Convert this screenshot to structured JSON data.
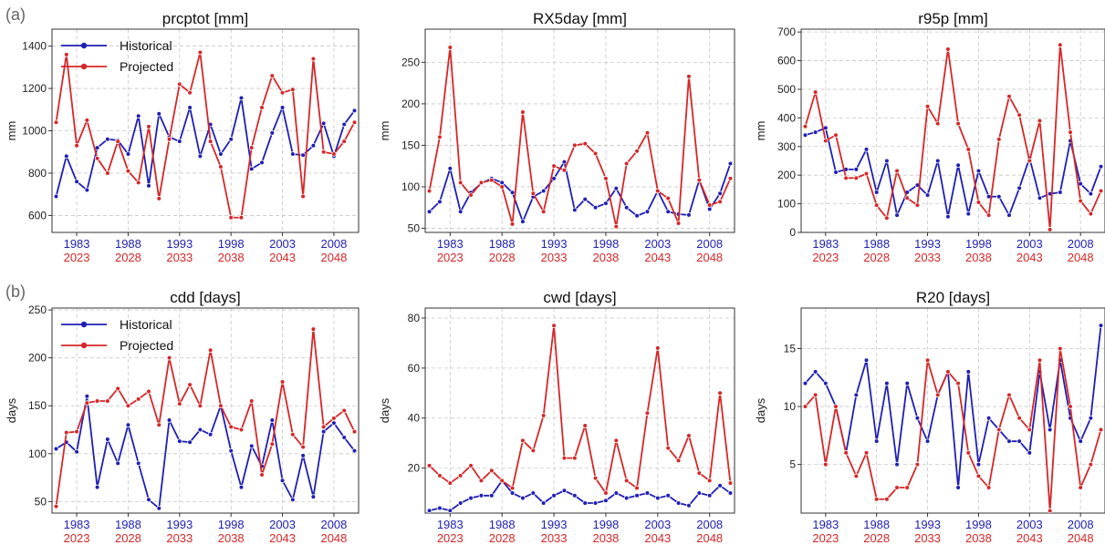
{
  "figure": {
    "panel_labels": [
      "(a)",
      "(b)"
    ],
    "x_ticks_hist": [
      "1983",
      "1988",
      "1993",
      "1998",
      "2003",
      "2008"
    ],
    "x_ticks_proj": [
      "2023",
      "2028",
      "2033",
      "2038",
      "2043",
      "2048"
    ],
    "colors": {
      "historical": "#1f1fb4",
      "projected": "#d62728",
      "grid": "#c8c8c8"
    }
  },
  "chart_data": [
    {
      "type": "line",
      "title": "prcptot [mm]",
      "ylabel": "mm",
      "ylim": [
        520,
        1480
      ],
      "yticks": [
        600,
        800,
        1000,
        1200,
        1400
      ],
      "x": [
        1981,
        1982,
        1983,
        1984,
        1985,
        1986,
        1987,
        1988,
        1989,
        1990,
        1991,
        1992,
        1993,
        1994,
        1995,
        1996,
        1997,
        1998,
        1999,
        2000,
        2001,
        2002,
        2003,
        2004,
        2005,
        2006,
        2007,
        2008,
        2009,
        2010
      ],
      "legend": {
        "show": true,
        "placement": "top-left"
      },
      "series": [
        {
          "name": "Historical",
          "values": [
            690,
            880,
            760,
            720,
            920,
            960,
            955,
            890,
            1070,
            740,
            1080,
            970,
            950,
            1110,
            880,
            1030,
            890,
            960,
            1155,
            820,
            850,
            990,
            1110,
            890,
            885,
            930,
            1035,
            880,
            1030,
            1095
          ]
        },
        {
          "name": "Projected",
          "values": [
            1040,
            1360,
            930,
            1050,
            870,
            800,
            950,
            810,
            755,
            1020,
            680,
            960,
            1220,
            1180,
            1370,
            950,
            830,
            590,
            590,
            920,
            1110,
            1260,
            1180,
            1195,
            690,
            1340,
            900,
            890,
            950,
            1040
          ]
        }
      ]
    },
    {
      "type": "line",
      "title": "RX5day [mm]",
      "ylabel": "mm",
      "ylim": [
        45,
        290
      ],
      "yticks": [
        50,
        100,
        150,
        200,
        250
      ],
      "x": [
        1981,
        1982,
        1983,
        1984,
        1985,
        1986,
        1987,
        1988,
        1989,
        1990,
        1991,
        1992,
        1993,
        1994,
        1995,
        1996,
        1997,
        1998,
        1999,
        2000,
        2001,
        2002,
        2003,
        2004,
        2005,
        2006,
        2007,
        2008,
        2009,
        2010
      ],
      "legend": {
        "show": false
      },
      "series": [
        {
          "name": "Historical",
          "values": [
            70,
            82,
            122,
            70,
            93,
            104,
            110,
            105,
            93,
            58,
            88,
            95,
            110,
            130,
            72,
            85,
            75,
            80,
            98,
            75,
            65,
            70,
            95,
            70,
            67,
            66,
            108,
            73,
            92,
            128
          ]
        },
        {
          "name": "Projected",
          "values": [
            95,
            160,
            268,
            105,
            90,
            105,
            108,
            100,
            55,
            190,
            92,
            70,
            125,
            120,
            150,
            152,
            140,
            110,
            52,
            128,
            143,
            165,
            95,
            86,
            56,
            233,
            108,
            78,
            82,
            110
          ]
        }
      ]
    },
    {
      "type": "line",
      "title": "r95p [mm]",
      "ylabel": "mm",
      "ylim": [
        0,
        710
      ],
      "yticks": [
        0,
        100,
        200,
        300,
        400,
        500,
        600,
        700
      ],
      "x": [
        1981,
        1982,
        1983,
        1984,
        1985,
        1986,
        1987,
        1988,
        1989,
        1990,
        1991,
        1992,
        1993,
        1994,
        1995,
        1996,
        1997,
        1998,
        1999,
        2000,
        2001,
        2002,
        2003,
        2004,
        2005,
        2006,
        2007,
        2008,
        2009,
        2010
      ],
      "legend": {
        "show": false
      },
      "series": [
        {
          "name": "Historical",
          "values": [
            340,
            350,
            365,
            210,
            220,
            220,
            290,
            140,
            250,
            60,
            140,
            165,
            130,
            250,
            55,
            235,
            65,
            215,
            125,
            125,
            60,
            155,
            260,
            120,
            135,
            140,
            320,
            170,
            135,
            230
          ]
        },
        {
          "name": "Projected",
          "values": [
            370,
            490,
            320,
            340,
            190,
            190,
            205,
            95,
            50,
            215,
            120,
            95,
            440,
            380,
            640,
            380,
            290,
            105,
            60,
            325,
            475,
            410,
            250,
            390,
            10,
            655,
            350,
            110,
            65,
            145
          ]
        }
      ]
    },
    {
      "type": "line",
      "title": "cdd [days]",
      "ylabel": "days",
      "ylim": [
        38,
        252
      ],
      "yticks": [
        50,
        100,
        150,
        200,
        250
      ],
      "x": [
        1981,
        1982,
        1983,
        1984,
        1985,
        1986,
        1987,
        1988,
        1989,
        1990,
        1991,
        1992,
        1993,
        1994,
        1995,
        1996,
        1997,
        1998,
        1999,
        2000,
        2001,
        2002,
        2003,
        2004,
        2005,
        2006,
        2007,
        2008,
        2009,
        2010
      ],
      "legend": {
        "show": true,
        "placement": "top-left"
      },
      "series": [
        {
          "name": "Historical",
          "values": [
            105,
            112,
            102,
            160,
            65,
            115,
            90,
            130,
            90,
            52,
            43,
            135,
            113,
            112,
            125,
            120,
            150,
            103,
            65,
            108,
            87,
            135,
            72,
            52,
            98,
            55,
            123,
            132,
            117,
            103
          ]
        },
        {
          "name": "Projected",
          "values": [
            45,
            122,
            123,
            153,
            155,
            155,
            168,
            150,
            157,
            165,
            130,
            200,
            152,
            172,
            150,
            208,
            150,
            128,
            125,
            155,
            78,
            110,
            175,
            120,
            107,
            230,
            128,
            137,
            145,
            123
          ]
        }
      ]
    },
    {
      "type": "line",
      "title": "cwd [days]",
      "ylabel": "days",
      "ylim": [
        2,
        84
      ],
      "yticks": [
        20,
        40,
        60,
        80
      ],
      "x": [
        1981,
        1982,
        1983,
        1984,
        1985,
        1986,
        1987,
        1988,
        1989,
        1990,
        1991,
        1992,
        1993,
        1994,
        1995,
        1996,
        1997,
        1998,
        1999,
        2000,
        2001,
        2002,
        2003,
        2004,
        2005,
        2006,
        2007,
        2008,
        2009,
        2010
      ],
      "legend": {
        "show": false
      },
      "series": [
        {
          "name": "Historical",
          "values": [
            3,
            4,
            3,
            6,
            8,
            9,
            9,
            15,
            10,
            8,
            10,
            6,
            9,
            11,
            9,
            6,
            6,
            7,
            10,
            8,
            9,
            10,
            8,
            9,
            6,
            5,
            10,
            9,
            13,
            10
          ]
        },
        {
          "name": "Projected",
          "values": [
            21,
            17,
            14,
            17,
            21,
            15,
            19,
            15,
            12,
            31,
            27,
            41,
            77,
            24,
            24,
            37,
            16,
            10,
            31,
            15,
            12,
            42,
            68,
            28,
            23,
            33,
            18,
            15,
            50,
            14
          ]
        }
      ]
    },
    {
      "type": "line",
      "title": "R20 [days]",
      "ylabel": "days",
      "ylim": [
        0.8,
        18.5
      ],
      "yticks": [
        5,
        10,
        15
      ],
      "x": [
        1981,
        1982,
        1983,
        1984,
        1985,
        1986,
        1987,
        1988,
        1989,
        1990,
        1991,
        1992,
        1993,
        1994,
        1995,
        1996,
        1997,
        1998,
        1999,
        2000,
        2001,
        2002,
        2003,
        2004,
        2005,
        2006,
        2007,
        2008,
        2009,
        2010
      ],
      "legend": {
        "show": false
      },
      "series": [
        {
          "name": "Historical",
          "values": [
            12,
            13,
            12,
            10,
            6,
            11,
            14,
            7,
            12,
            5,
            12,
            9,
            7,
            11,
            13,
            3,
            13,
            5,
            9,
            8,
            7,
            7,
            6,
            13,
            8,
            14,
            9,
            7,
            9,
            17
          ]
        },
        {
          "name": "Projected",
          "values": [
            10,
            11,
            5,
            10,
            6,
            4,
            6,
            2,
            2,
            3,
            3,
            5,
            14,
            11,
            13,
            12,
            6,
            4,
            3,
            8,
            11,
            9,
            8,
            14,
            1,
            15,
            10,
            3,
            5,
            8
          ]
        }
      ]
    }
  ]
}
